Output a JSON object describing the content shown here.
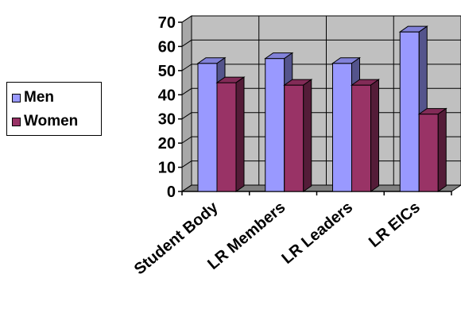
{
  "chart_data": {
    "type": "bar",
    "categories": [
      "Student Body",
      "LR Members",
      "LR Leaders",
      "LR EICs"
    ],
    "series": [
      {
        "name": "Men",
        "values": [
          53,
          55,
          53,
          66
        ],
        "color": "#9999FF"
      },
      {
        "name": "Women",
        "values": [
          45,
          44,
          44,
          32
        ],
        "color": "#993366"
      }
    ],
    "ylim": [
      0,
      70
    ],
    "yticks": [
      0,
      10,
      20,
      30,
      40,
      50,
      60,
      70
    ],
    "grid": true,
    "legend_position": "left",
    "plot_background": "#C0C0C0"
  }
}
